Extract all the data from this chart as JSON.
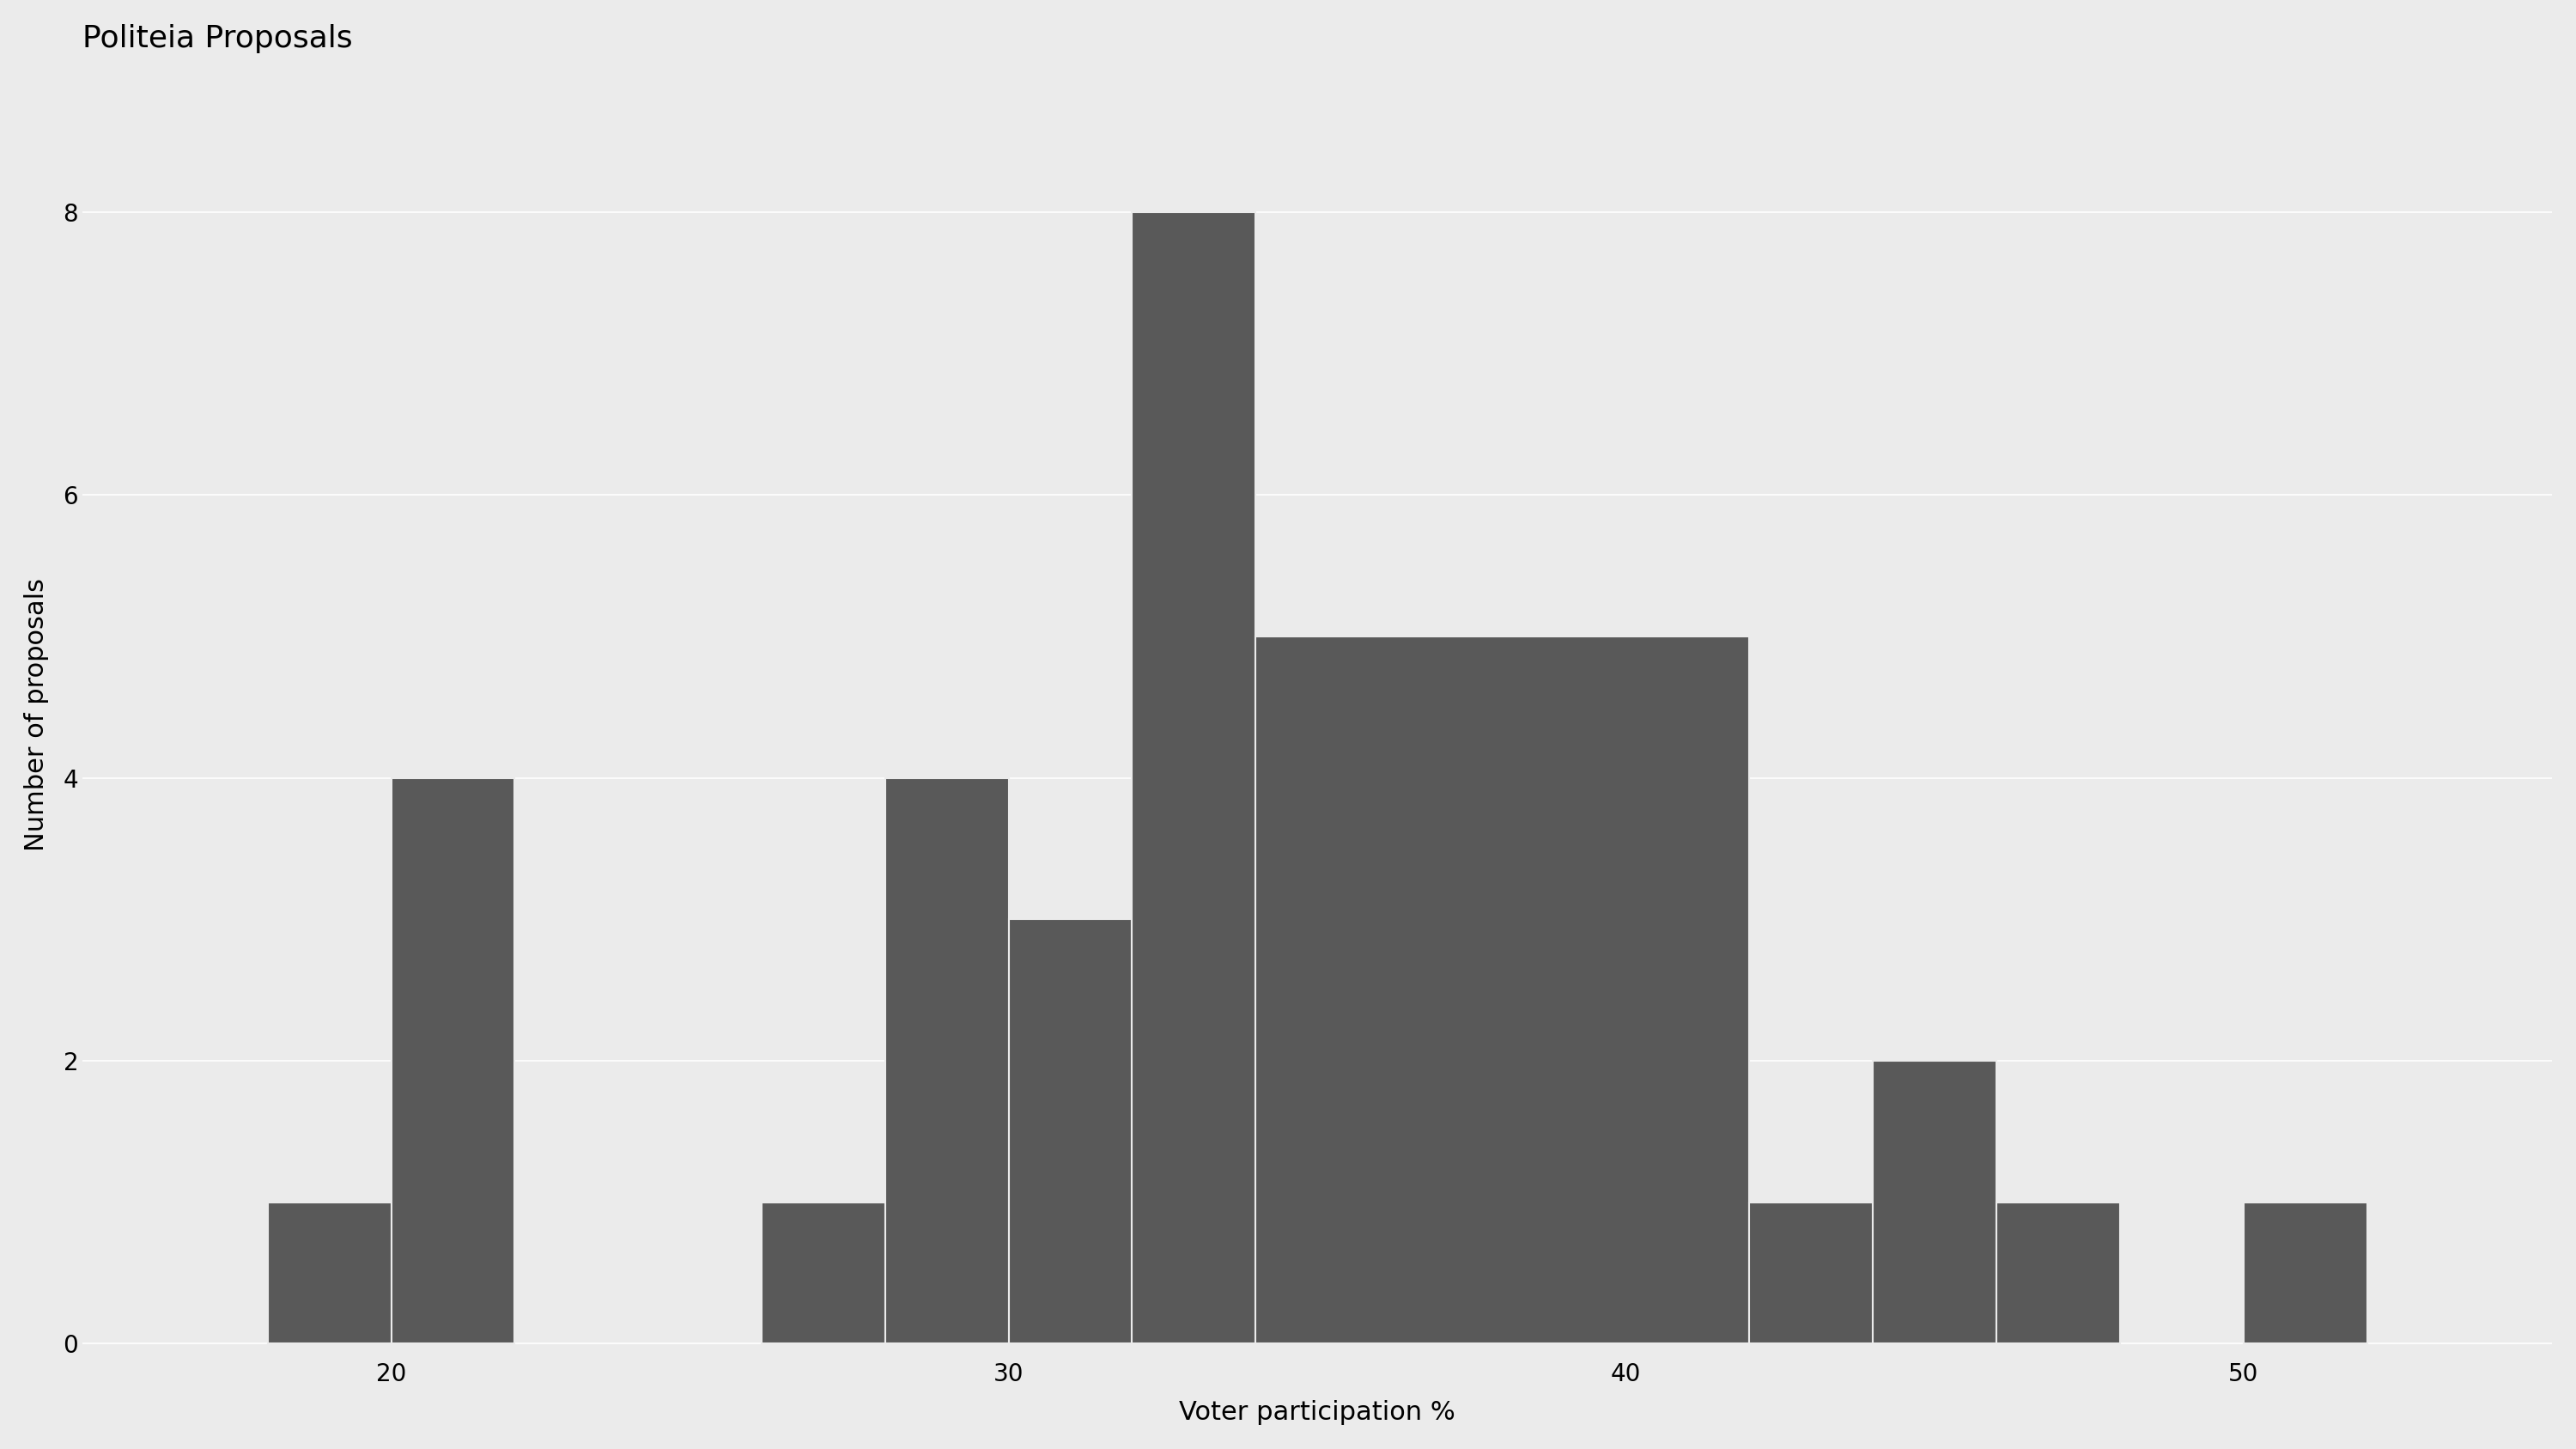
{
  "title": "Politeia Proposals",
  "xlabel": "Voter participation %",
  "ylabel": "Number of proposals",
  "bar_color": "#595959",
  "background_color": "#ebebeb",
  "grid_color": "#ffffff",
  "title_fontsize": 26,
  "axis_fontsize": 22,
  "tick_fontsize": 20,
  "xlim": [
    15.0,
    55.0
  ],
  "ylim": [
    -0.1,
    9.0
  ],
  "yticks": [
    0,
    2,
    4,
    6,
    8
  ],
  "xticks": [
    20,
    30,
    40,
    50
  ],
  "bins": [
    18,
    20,
    22,
    24,
    26,
    28,
    30,
    32,
    34,
    42,
    44,
    46,
    48,
    50,
    52
  ],
  "bin_heights": [
    1,
    4,
    0,
    0,
    1,
    4,
    3,
    8,
    5,
    1,
    2,
    1,
    0,
    1
  ]
}
